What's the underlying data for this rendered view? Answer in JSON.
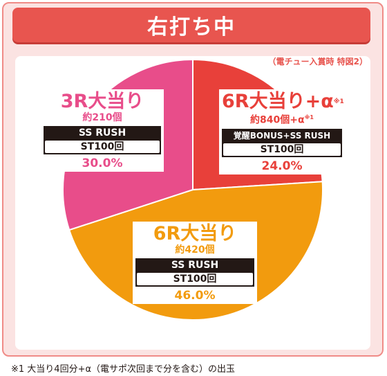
{
  "header": {
    "title": "右打ち中"
  },
  "note": "（電チュー入賞時 特図2）",
  "colors": {
    "frame": "#f08b87",
    "banner": "#e8554f",
    "pink": "#e84d8a",
    "red": "#e8403a",
    "orange": "#f29b0e"
  },
  "slices": [
    {
      "title": "3R大当り",
      "title_sup": "",
      "sub": "約210個",
      "sub_sup": "",
      "mode": "SS RUSH",
      "st": "ST100回",
      "pct_label": "30.0%"
    },
    {
      "title": "6R大当り+α",
      "title_sup": "※1",
      "sub": "約840個+α",
      "sub_sup": "※1",
      "mode": "覚醒BONUS+SS RUSH",
      "st": "ST100回",
      "pct_label": "24.0%"
    },
    {
      "title": "6R大当り",
      "title_sup": "",
      "sub": "約420個",
      "sub_sup": "",
      "mode": "SS RUSH",
      "st": "ST100回",
      "pct_label": "46.0%"
    }
  ],
  "chart_data": {
    "type": "pie",
    "categories": [
      "6R大当り+α",
      "6R大当り",
      "3R大当り"
    ],
    "values": [
      24.0,
      46.0,
      30.0
    ],
    "colors": [
      "#e8403a",
      "#f29b0e",
      "#e84d8a"
    ],
    "start": "top",
    "direction": "clockwise"
  },
  "footer": "※1 大当り4回分+α（電サポ次回まで分を含む）の出玉"
}
